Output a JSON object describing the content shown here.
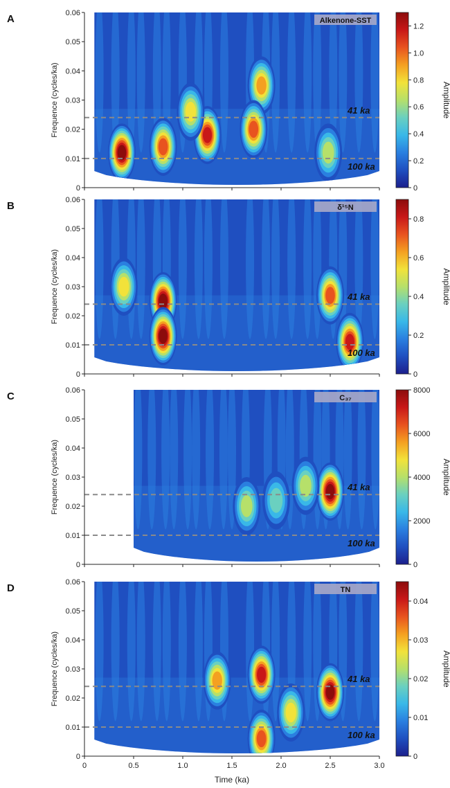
{
  "figure": {
    "x_axis_label": "Time (ka)",
    "x_ticks": [
      "0",
      "0.5",
      "1.0",
      "1.5",
      "2.0",
      "2.5",
      "3.0"
    ],
    "y_ticks": [
      "0",
      "0.01",
      "0.02",
      "0.03",
      "0.04",
      "0.05",
      "0.06"
    ],
    "y_axis_label": "Frequence (cycles/ka)",
    "colorbar_label": "Amplitude",
    "reference_lines": [
      {
        "label": "41 ka",
        "frequency": 0.024
      },
      {
        "label": "100 ka",
        "frequency": 0.01
      }
    ],
    "colormap": [
      "#1c1f8c",
      "#1f4fc0",
      "#2a7fe0",
      "#39b8e8",
      "#6ad0c0",
      "#b6e06a",
      "#f2e23a",
      "#f4a021",
      "#e8531f",
      "#c81818",
      "#8c0c0c"
    ]
  },
  "chart_data": [
    {
      "type": "heatmap",
      "panel_letter": "A",
      "title": "Alkenone-SST",
      "x_range": [
        0,
        3.0
      ],
      "y_range": [
        0,
        0.06
      ],
      "data_start_time": 0.1,
      "colorbar_range": [
        0,
        1.3
      ],
      "colorbar_ticks": [
        "0",
        "0.2",
        "0.4",
        "0.6",
        "0.8",
        "1.0",
        "1.2"
      ],
      "peaks": [
        {
          "time": 0.38,
          "frequency": 0.012,
          "amplitude": 1.25
        },
        {
          "time": 0.8,
          "frequency": 0.014,
          "amplitude": 1.1
        },
        {
          "time": 1.25,
          "frequency": 0.018,
          "amplitude": 1.15
        },
        {
          "time": 1.8,
          "frequency": 0.035,
          "amplitude": 0.95
        },
        {
          "time": 1.72,
          "frequency": 0.02,
          "amplitude": 1.0
        },
        {
          "time": 1.08,
          "frequency": 0.026,
          "amplitude": 0.75
        },
        {
          "time": 2.48,
          "frequency": 0.012,
          "amplitude": 0.65
        }
      ]
    },
    {
      "type": "heatmap",
      "panel_letter": "B",
      "title": "δ¹⁵N",
      "x_range": [
        0,
        3.0
      ],
      "y_range": [
        0,
        0.06
      ],
      "data_start_time": 0.1,
      "colorbar_range": [
        0,
        0.9
      ],
      "colorbar_ticks": [
        "0",
        "0.2",
        "0.4",
        "0.6",
        "0.8"
      ],
      "peaks": [
        {
          "time": 0.8,
          "frequency": 0.025,
          "amplitude": 0.9
        },
        {
          "time": 0.8,
          "frequency": 0.013,
          "amplitude": 0.88
        },
        {
          "time": 2.7,
          "frequency": 0.011,
          "amplitude": 0.85
        },
        {
          "time": 2.5,
          "frequency": 0.027,
          "amplitude": 0.7
        },
        {
          "time": 0.4,
          "frequency": 0.03,
          "amplitude": 0.55
        }
      ]
    },
    {
      "type": "heatmap",
      "panel_letter": "C",
      "title": "C₃₇",
      "x_range": [
        0,
        3.0
      ],
      "y_range": [
        0,
        0.06
      ],
      "data_start_time": 0.5,
      "colorbar_range": [
        0,
        8000
      ],
      "colorbar_ticks": [
        "0",
        "2000",
        "4000",
        "6000",
        "8000"
      ],
      "peaks": [
        {
          "time": 2.5,
          "frequency": 0.025,
          "amplitude": 7800
        },
        {
          "time": 2.25,
          "frequency": 0.027,
          "amplitude": 4200
        },
        {
          "time": 1.65,
          "frequency": 0.02,
          "amplitude": 3800
        },
        {
          "time": 1.95,
          "frequency": 0.022,
          "amplitude": 3500
        }
      ]
    },
    {
      "type": "heatmap",
      "panel_letter": "D",
      "title": "TN",
      "x_range": [
        0,
        3.0
      ],
      "y_range": [
        0,
        0.06
      ],
      "data_start_time": 0.1,
      "colorbar_range": [
        0,
        0.045
      ],
      "colorbar_ticks": [
        "0",
        "0.01",
        "0.02",
        "0.03",
        "0.04"
      ],
      "peaks": [
        {
          "time": 2.5,
          "frequency": 0.022,
          "amplitude": 0.044
        },
        {
          "time": 1.8,
          "frequency": 0.028,
          "amplitude": 0.042
        },
        {
          "time": 1.8,
          "frequency": 0.006,
          "amplitude": 0.038
        },
        {
          "time": 1.35,
          "frequency": 0.026,
          "amplitude": 0.032
        },
        {
          "time": 2.1,
          "frequency": 0.015,
          "amplitude": 0.028
        }
      ]
    }
  ]
}
